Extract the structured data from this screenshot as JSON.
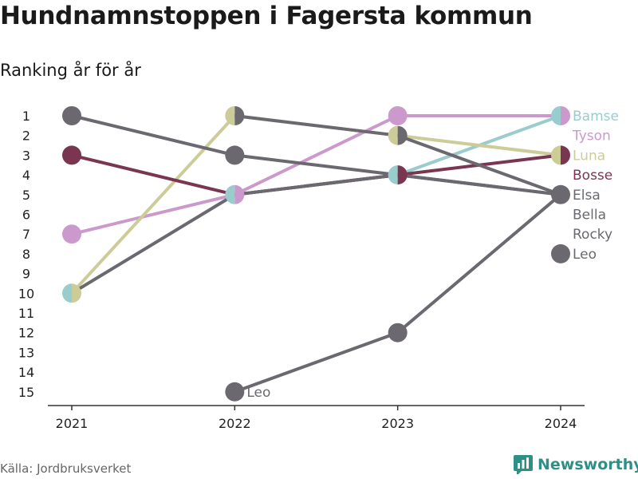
{
  "header": {
    "title": "Hundnamnstoppen i Fagersta kommun",
    "subtitle": "Ranking år för år"
  },
  "footer": {
    "source": "Källa: Jordbruksverket",
    "brand": "Newsworthy"
  },
  "colors": {
    "gray": "#6b6870",
    "bosse": "#7a3650",
    "tyson": "#cc99cc",
    "luna": "#cccc99",
    "bamse": "#99cccc",
    "axis": "#333333",
    "brand": "#2e8f86"
  },
  "chart_data": {
    "type": "line",
    "subtype": "bump",
    "x": [
      "2021",
      "2022",
      "2023",
      "2024"
    ],
    "y_ticks": [
      1,
      2,
      3,
      4,
      5,
      6,
      7,
      8,
      9,
      10,
      11,
      12,
      13,
      14,
      15
    ],
    "ylim": [
      15,
      1
    ],
    "y_inverted": true,
    "grid": false,
    "series": [
      {
        "name": "Bamse",
        "color": "#99cccc",
        "ranks": [
          10,
          5,
          4,
          1
        ]
      },
      {
        "name": "Tyson",
        "color": "#cc99cc",
        "ranks": [
          7,
          5,
          1,
          1
        ]
      },
      {
        "name": "Luna",
        "color": "#cccc99",
        "ranks": [
          10,
          1,
          2,
          3
        ]
      },
      {
        "name": "Bosse",
        "color": "#7a3650",
        "ranks": [
          3,
          5,
          4,
          3
        ]
      },
      {
        "name": "Elsa",
        "color": "#6b6870",
        "ranks": [
          1,
          3,
          4,
          5
        ]
      },
      {
        "name": "Bella",
        "color": "#6b6870",
        "ranks": [
          null,
          1,
          2,
          5
        ]
      },
      {
        "name": "Rocky",
        "color": "#6b6870",
        "ranks": [
          10,
          5,
          4,
          5
        ]
      },
      {
        "name": "Leo",
        "color": "#6b6870",
        "ranks": [
          null,
          15,
          12,
          5
        ]
      }
    ],
    "end_labels": [
      {
        "name": "Bamse",
        "color": "#99cccc"
      },
      {
        "name": "Tyson",
        "color": "#cc99cc"
      },
      {
        "name": "Luna",
        "color": "#cccc99"
      },
      {
        "name": "Bosse",
        "color": "#7a3650"
      },
      {
        "name": "Elsa",
        "color": "#6b6870"
      },
      {
        "name": "Bella",
        "color": "#6b6870"
      },
      {
        "name": "Rocky",
        "color": "#6b6870"
      },
      {
        "name": "Leo",
        "color": "#6b6870"
      }
    ],
    "extra_marker": {
      "year": "2024",
      "rank": 8,
      "color": "#6b6870"
    },
    "annotation": {
      "text": "Leo",
      "year": "2022",
      "rank": 15
    }
  }
}
